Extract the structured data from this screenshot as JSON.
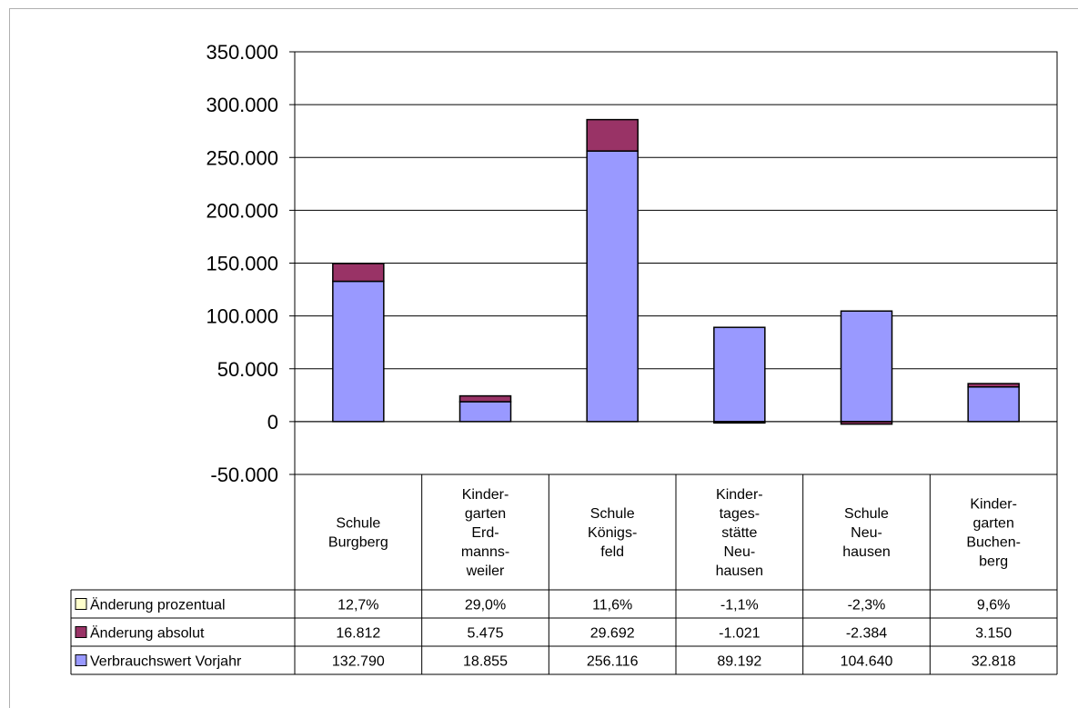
{
  "chart_data": {
    "type": "bar",
    "stacked": true,
    "categories": [
      [
        "Schule",
        "Burgberg"
      ],
      [
        "Kinder-",
        "garten",
        "Erd-",
        "manns-",
        "weiler"
      ],
      [
        "Schule",
        "Königs-",
        "feld"
      ],
      [
        "Kinder-",
        "tages-",
        "stätte",
        "Neu-",
        "hausen"
      ],
      [
        "Schule",
        "Neu-",
        "hausen"
      ],
      [
        "Kinder-",
        "garten",
        "Buchen-",
        "berg"
      ]
    ],
    "series": [
      {
        "name": "Änderung prozentual",
        "color": "#ffffcc",
        "plotted": false,
        "values": [
          12.7,
          29.0,
          11.6,
          -1.1,
          -2.3,
          9.6
        ],
        "labels": [
          "12,7%",
          "29,0%",
          "11,6%",
          "-1,1%",
          "-2,3%",
          "9,6%"
        ]
      },
      {
        "name": "Änderung absolut",
        "color": "#993366",
        "plotted": true,
        "values": [
          16812,
          5475,
          29692,
          -1021,
          -2384,
          3150
        ],
        "labels": [
          "16.812",
          "5.475",
          "29.692",
          "-1.021",
          "-2.384",
          "3.150"
        ]
      },
      {
        "name": "Verbrauchswert Vorjahr",
        "color": "#9999ff",
        "plotted": true,
        "values": [
          132790,
          18855,
          256116,
          89192,
          104640,
          32818
        ],
        "labels": [
          "132.790",
          "18.855",
          "256.116",
          "89.192",
          "104.640",
          "32.818"
        ]
      }
    ],
    "ylim": [
      -50000,
      350000
    ],
    "yticks": [
      -50000,
      0,
      50000,
      100000,
      150000,
      200000,
      250000,
      300000,
      350000
    ],
    "ytick_labels": [
      "-50.000",
      "0",
      "50.000",
      "100.000",
      "150.000",
      "200.000",
      "250.000",
      "300.000",
      "350.000"
    ],
    "grid": true,
    "legend": "data-table-left"
  }
}
